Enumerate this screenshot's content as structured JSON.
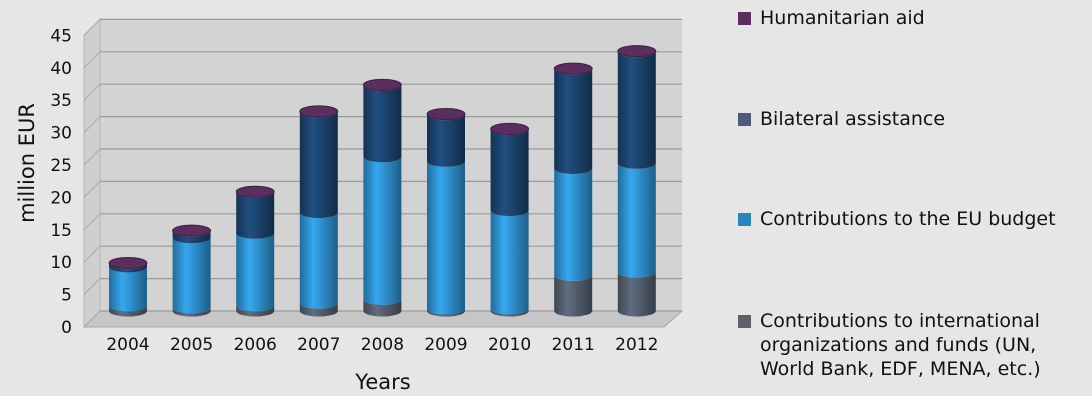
{
  "chart_data": {
    "type": "bar",
    "stacked": true,
    "style": "3d-cylinder",
    "title": "",
    "xlabel": "Years",
    "ylabel": "million EUR",
    "ylim": [
      0,
      45
    ],
    "yticks": [
      0,
      5,
      10,
      15,
      20,
      25,
      30,
      35,
      40,
      45
    ],
    "grid": true,
    "legend_position": "right",
    "categories": [
      "2004",
      "2005",
      "2006",
      "2007",
      "2008",
      "2009",
      "2010",
      "2011",
      "2012"
    ],
    "series": [
      {
        "name": "Contributions to international organizations and funds (UN, World Bank, EDF, MENA, etc.)",
        "color": "#4d5766",
        "values": [
          0.8,
          0.5,
          0.8,
          1.2,
          1.8,
          0.3,
          0.3,
          5.5,
          6.0
        ]
      },
      {
        "name": "Contributions to the EU budget",
        "color": "#2b86c0",
        "values": [
          6.0,
          10.8,
          11.2,
          14.0,
          22.0,
          22.8,
          15.2,
          16.5,
          16.8
        ]
      },
      {
        "name": "Bilateral assistance",
        "color": "#1a3f66",
        "values": [
          0.5,
          1.0,
          6.3,
          15.5,
          11.0,
          7.2,
          12.5,
          15.3,
          17.2
        ]
      },
      {
        "name": "Humanitarian aid",
        "color": "#5a2e5e",
        "values": [
          0.1,
          0.1,
          0.1,
          0.1,
          0.1,
          0.1,
          0.1,
          0.1,
          0.1
        ]
      }
    ]
  },
  "legend": {
    "items": [
      {
        "label": "Humanitarian aid",
        "color": "#5a2e5e"
      },
      {
        "label": "Bilateral assistance",
        "color": "#4d5a78"
      },
      {
        "label": "Contributions to the EU budget",
        "color": "#2b86c0"
      },
      {
        "label": "Contributions to international organizations and funds (UN, World Bank, EDF, MENA, etc.)",
        "color": "#5f6168"
      }
    ]
  }
}
